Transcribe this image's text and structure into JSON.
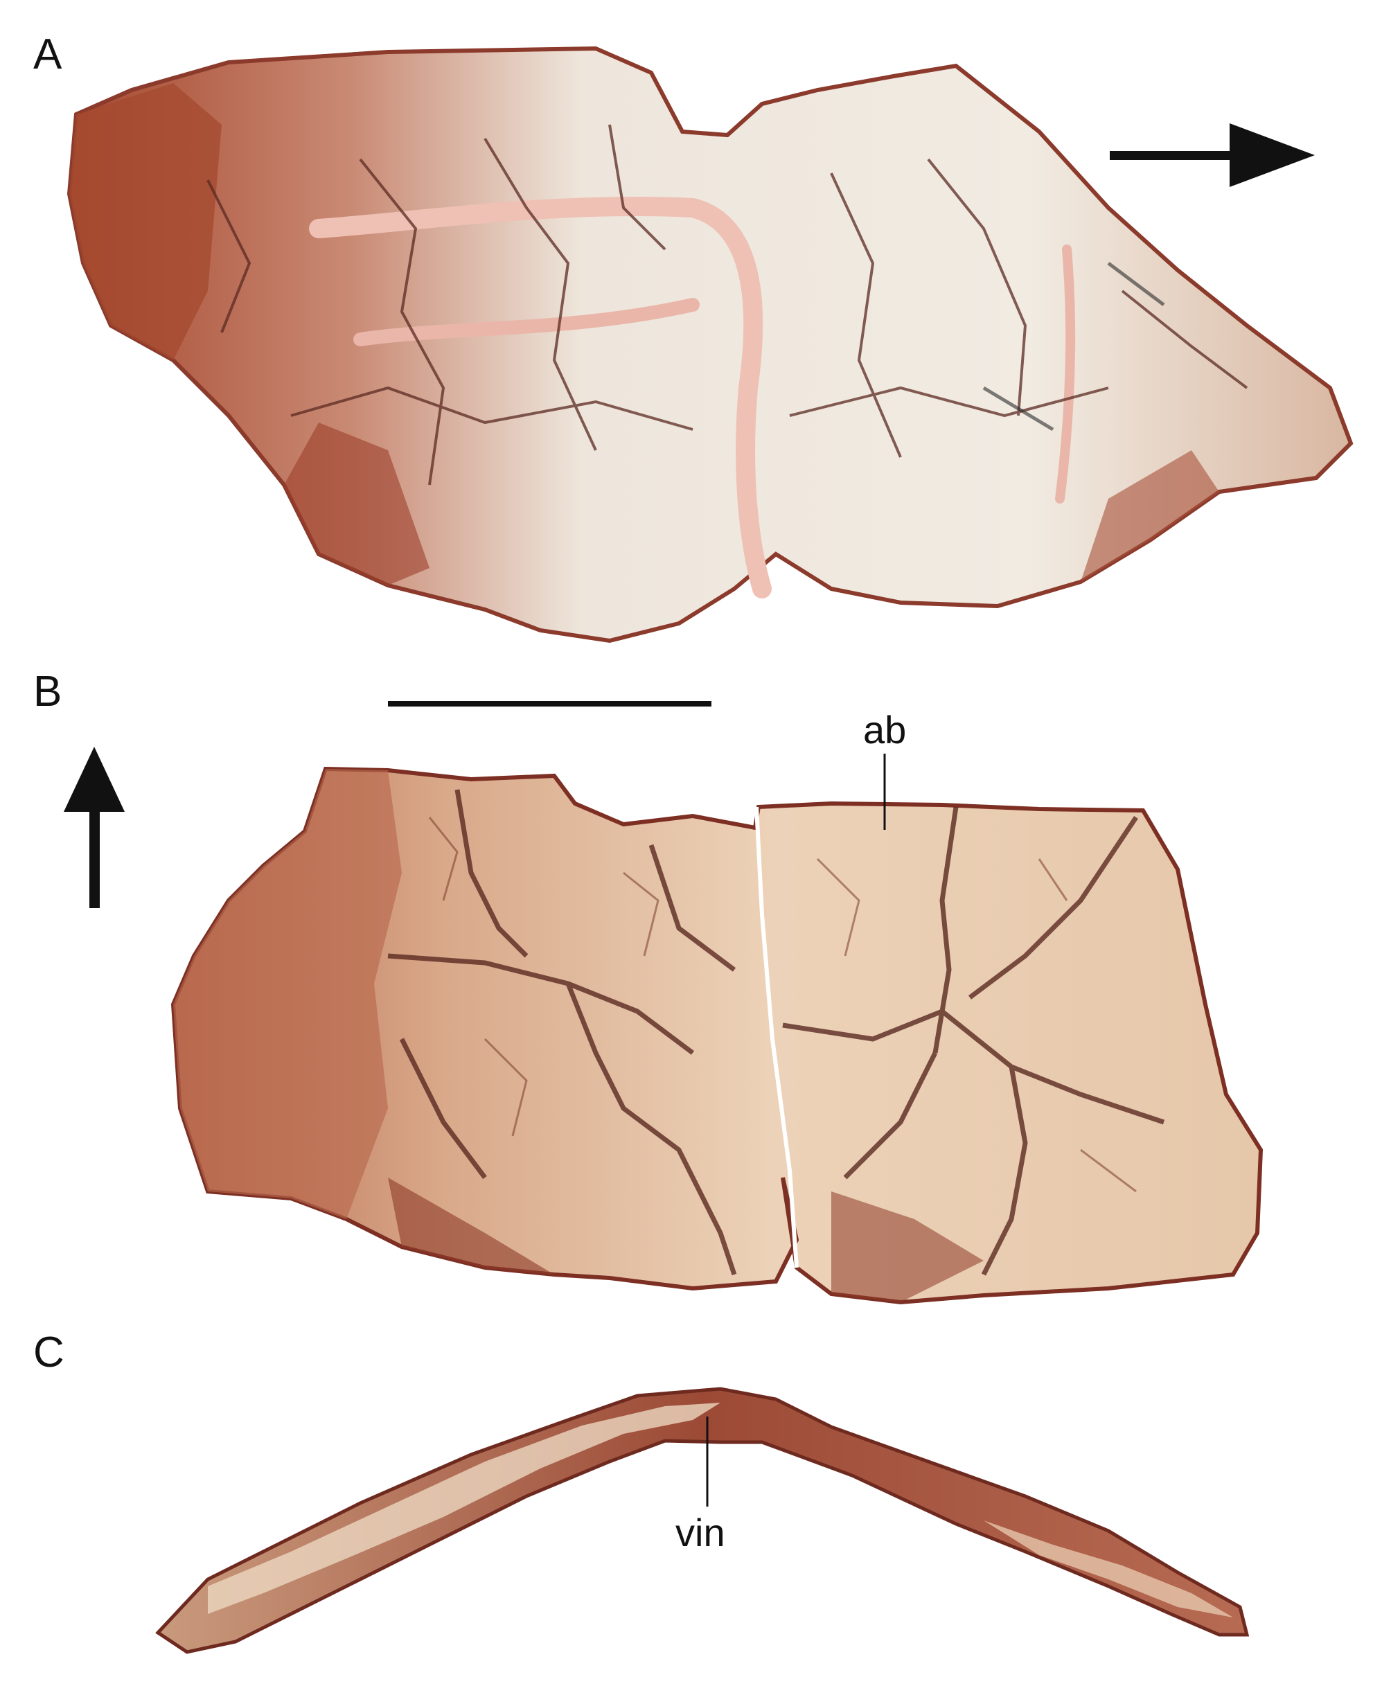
{
  "panels": {
    "a": {
      "letter": "A"
    },
    "b": {
      "letter": "B"
    },
    "c": {
      "letter": "C"
    }
  },
  "annotations": {
    "ab": "ab",
    "vin": "vin"
  },
  "colors": {
    "bone_light": "#efe3d2",
    "bone_cream": "#e8ceb4",
    "matrix_red": "#b35a42",
    "matrix_dark": "#7d2f23",
    "crack": "#5b2a22",
    "pink_vein": "#e8b0a6",
    "ink": "#111111"
  }
}
